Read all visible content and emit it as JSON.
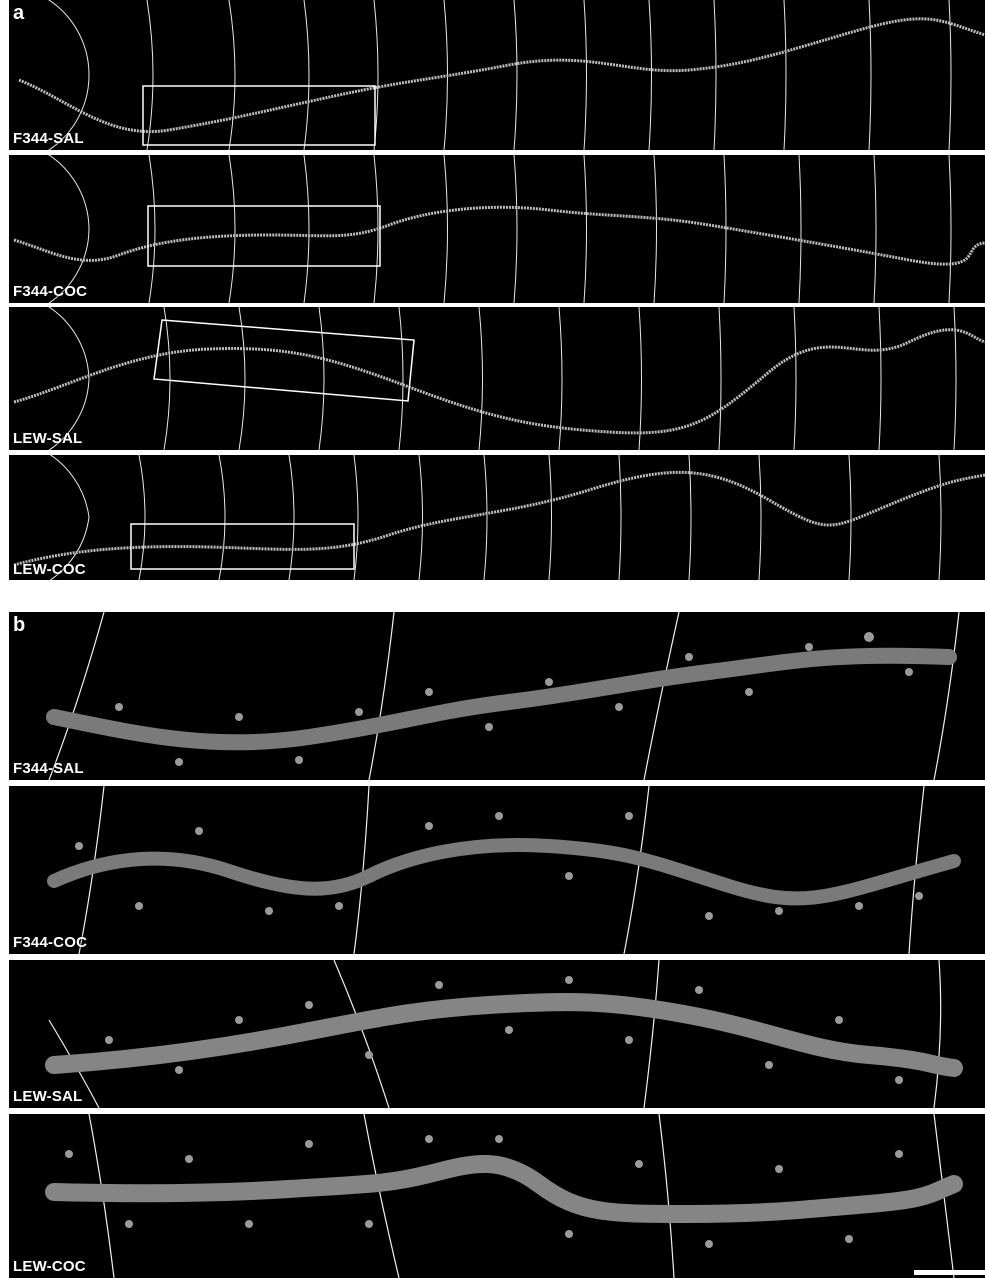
{
  "figure": {
    "section_a_letter": "a",
    "section_b_letter": "b",
    "section_a_panels": [
      {
        "label": "F344-SAL"
      },
      {
        "label": "F344-COC"
      },
      {
        "label": "LEW-SAL"
      },
      {
        "label": "LEW-COC"
      }
    ],
    "section_b_panels": [
      {
        "label": "F344-SAL"
      },
      {
        "label": "F344-COC"
      },
      {
        "label": "LEW-SAL"
      },
      {
        "label": "LEW-COC"
      }
    ]
  }
}
